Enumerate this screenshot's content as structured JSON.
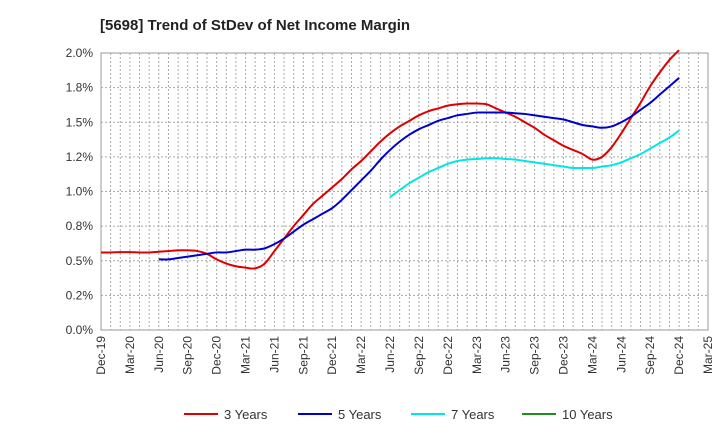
{
  "chart_data": {
    "type": "line",
    "title": "[5698]  Trend of StDev of Net Income Margin",
    "xlabel": "",
    "ylabel": "",
    "ylim": [
      0,
      0.02
    ],
    "y_ticks": [
      0,
      0.0025,
      0.005,
      0.0075,
      0.01,
      0.0125,
      0.015,
      0.0175,
      0.02
    ],
    "y_tick_labels": [
      "0.0%",
      "0.2%",
      "0.5%",
      "0.8%",
      "1.0%",
      "1.2%",
      "1.5%",
      "1.8%",
      "2.0%"
    ],
    "x_tick_labels": [
      "Dec-19",
      "Mar-20",
      "Jun-20",
      "Sep-20",
      "Dec-20",
      "Mar-21",
      "Jun-21",
      "Sep-21",
      "Dec-21",
      "Mar-22",
      "Jun-22",
      "Sep-22",
      "Dec-22",
      "Mar-23",
      "Jun-23",
      "Sep-23",
      "Dec-23",
      "Mar-24",
      "Jun-24",
      "Sep-24",
      "Dec-24",
      "Mar-25"
    ],
    "grid": true,
    "legend_position": "bottom",
    "series": [
      {
        "name": "3 Years",
        "color": "#dd0000",
        "x": [
          "Dec-19",
          "Jan-20",
          "Feb-20",
          "Mar-20",
          "Apr-20",
          "May-20",
          "Jun-20",
          "Jul-20",
          "Aug-20",
          "Sep-20",
          "Oct-20",
          "Nov-20",
          "Dec-20",
          "Jan-21",
          "Feb-21",
          "Mar-21",
          "Apr-21",
          "May-21",
          "Jun-21",
          "Jul-21",
          "Aug-21",
          "Sep-21",
          "Oct-21",
          "Nov-21",
          "Dec-21",
          "Jan-22",
          "Feb-22",
          "Mar-22",
          "Apr-22",
          "May-22",
          "Jun-22",
          "Jul-22",
          "Aug-22",
          "Sep-22",
          "Oct-22",
          "Nov-22",
          "Dec-22",
          "Jan-23",
          "Feb-23",
          "Mar-23",
          "Apr-23",
          "May-23",
          "Jun-23",
          "Jul-23",
          "Aug-23",
          "Sep-23",
          "Oct-23",
          "Nov-23",
          "Dec-23",
          "Jan-24",
          "Feb-24",
          "Mar-24",
          "Apr-24",
          "May-24",
          "Jun-24",
          "Jul-24",
          "Aug-24",
          "Sep-24",
          "Oct-24",
          "Nov-24",
          "Dec-24"
        ],
        "values": [
          0.0056,
          0.0056,
          0.00562,
          0.00562,
          0.0056,
          0.0056,
          0.00565,
          0.0057,
          0.00575,
          0.00575,
          0.0057,
          0.0055,
          0.0051,
          0.0048,
          0.0046,
          0.0045,
          0.00445,
          0.0048,
          0.0057,
          0.0066,
          0.0075,
          0.0083,
          0.0091,
          0.0097,
          0.0103,
          0.0109,
          0.0116,
          0.0122,
          0.0129,
          0.0136,
          0.0142,
          0.0147,
          0.0151,
          0.0155,
          0.0158,
          0.016,
          0.0162,
          0.0163,
          0.01635,
          0.01635,
          0.0163,
          0.016,
          0.0157,
          0.0154,
          0.015,
          0.0146,
          0.0141,
          0.0137,
          0.0133,
          0.013,
          0.0127,
          0.0123,
          0.0125,
          0.0132,
          0.0142,
          0.0153,
          0.0164,
          0.0176,
          0.0186,
          0.0195,
          0.0202
        ]
      },
      {
        "name": "5 Years",
        "color": "#0000cc",
        "x": [
          "Jun-20",
          "Jul-20",
          "Aug-20",
          "Sep-20",
          "Oct-20",
          "Nov-20",
          "Dec-20",
          "Jan-21",
          "Feb-21",
          "Mar-21",
          "Apr-21",
          "May-21",
          "Jun-21",
          "Jul-21",
          "Aug-21",
          "Sep-21",
          "Oct-21",
          "Nov-21",
          "Dec-21",
          "Jan-22",
          "Feb-22",
          "Mar-22",
          "Apr-22",
          "May-22",
          "Jun-22",
          "Jul-22",
          "Aug-22",
          "Sep-22",
          "Oct-22",
          "Nov-22",
          "Dec-22",
          "Jan-23",
          "Feb-23",
          "Mar-23",
          "Apr-23",
          "May-23",
          "Jun-23",
          "Jul-23",
          "Aug-23",
          "Sep-23",
          "Oct-23",
          "Nov-23",
          "Dec-23",
          "Jan-24",
          "Feb-24",
          "Mar-24",
          "Apr-24",
          "May-24",
          "Jun-24",
          "Jul-24",
          "Aug-24",
          "Sep-24",
          "Oct-24",
          "Nov-24",
          "Dec-24"
        ],
        "values": [
          0.0051,
          0.0051,
          0.0052,
          0.0053,
          0.0054,
          0.0055,
          0.0056,
          0.0056,
          0.0057,
          0.0058,
          0.0058,
          0.0059,
          0.0062,
          0.0066,
          0.0071,
          0.0076,
          0.008,
          0.0084,
          0.0088,
          0.0094,
          0.0101,
          0.0108,
          0.0115,
          0.0123,
          0.013,
          0.0136,
          0.0141,
          0.0145,
          0.0148,
          0.0151,
          0.0153,
          0.0155,
          0.0156,
          0.0157,
          0.0157,
          0.0157,
          0.0157,
          0.01565,
          0.0156,
          0.0155,
          0.0154,
          0.0153,
          0.0152,
          0.015,
          0.0148,
          0.0147,
          0.0146,
          0.0147,
          0.015,
          0.0154,
          0.0159,
          0.0164,
          0.017,
          0.0176,
          0.0182
        ]
      },
      {
        "name": "7 Years",
        "color": "#00e5e5",
        "x": [
          "Jun-22",
          "Jul-22",
          "Aug-22",
          "Sep-22",
          "Oct-22",
          "Nov-22",
          "Dec-22",
          "Jan-23",
          "Feb-23",
          "Mar-23",
          "Apr-23",
          "May-23",
          "Jun-23",
          "Jul-23",
          "Aug-23",
          "Sep-23",
          "Oct-23",
          "Nov-23",
          "Dec-23",
          "Jan-24",
          "Feb-24",
          "Mar-24",
          "Apr-24",
          "May-24",
          "Jun-24",
          "Jul-24",
          "Aug-24",
          "Sep-24",
          "Oct-24",
          "Nov-24",
          "Dec-24"
        ],
        "values": [
          0.0096,
          0.0101,
          0.0106,
          0.011,
          0.0114,
          0.0117,
          0.012,
          0.0122,
          0.0123,
          0.01235,
          0.0124,
          0.0124,
          0.01235,
          0.0123,
          0.0122,
          0.0121,
          0.012,
          0.0119,
          0.0118,
          0.0117,
          0.0117,
          0.0117,
          0.0118,
          0.0119,
          0.0121,
          0.0124,
          0.0127,
          0.0131,
          0.0135,
          0.0139,
          0.0144
        ]
      },
      {
        "name": "10 Years",
        "color": "#228b22",
        "x": [],
        "values": []
      }
    ]
  }
}
